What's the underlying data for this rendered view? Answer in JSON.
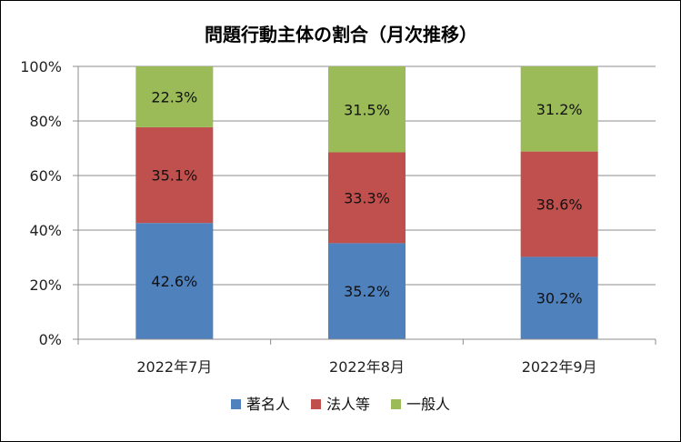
{
  "chart_data": {
    "type": "bar",
    "stacked": "percent",
    "title": "問題行動主体の割合（月次推移）",
    "categories": [
      "2022年7月",
      "2022年8月",
      "2022年9月"
    ],
    "series": [
      {
        "name": "著名人",
        "values": [
          42.6,
          35.2,
          30.2
        ],
        "labels": [
          "42.6%",
          "35.2%",
          "30.2%"
        ],
        "color": "#4f81bd"
      },
      {
        "name": "法人等",
        "values": [
          35.1,
          33.3,
          38.6
        ],
        "labels": [
          "35.1%",
          "33.3%",
          "38.6%"
        ],
        "color": "#c0504d"
      },
      {
        "name": "一般人",
        "values": [
          22.3,
          31.5,
          31.2
        ],
        "labels": [
          "22.3%",
          "31.5%",
          "31.2%"
        ],
        "color": "#9bbb59"
      }
    ],
    "yticks": [
      "0%",
      "20%",
      "40%",
      "60%",
      "80%",
      "100%"
    ],
    "ylim": [
      0,
      100
    ],
    "grid": true,
    "legend": "bottom",
    "xlabel": "",
    "ylabel": ""
  }
}
